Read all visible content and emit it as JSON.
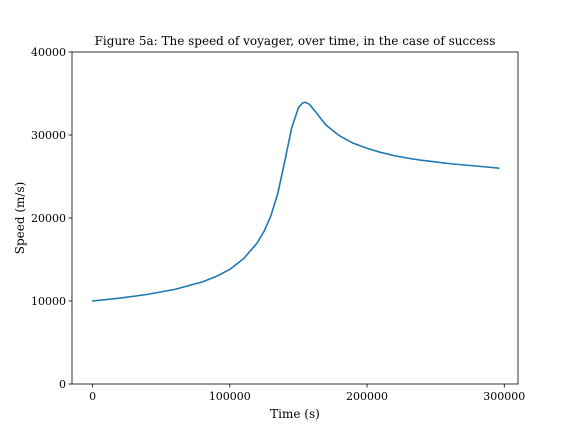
{
  "chart_data": {
    "type": "line",
    "title": "Figure 5a: The speed of voyager, over time, in the case of success",
    "xlabel": "Time (s)",
    "ylabel": "Speed (m/s)",
    "xlim": [
      -15000,
      310000
    ],
    "ylim": [
      0,
      40000
    ],
    "xticks": [
      0,
      100000,
      200000,
      300000
    ],
    "xtick_labels": [
      "0",
      "100000",
      "200000",
      "300000"
    ],
    "yticks": [
      0,
      10000,
      20000,
      30000,
      40000
    ],
    "ytick_labels": [
      "0",
      "10000",
      "20000",
      "30000",
      "40000"
    ],
    "grid": false,
    "series": [
      {
        "color": "#1f77b4",
        "x": [
          0,
          20000,
          40000,
          60000,
          80000,
          90000,
          100000,
          110000,
          120000,
          125000,
          130000,
          135000,
          140000,
          145000,
          150000,
          153000,
          155000,
          158000,
          162000,
          170000,
          180000,
          190000,
          200000,
          210000,
          220000,
          230000,
          240000,
          250000,
          260000,
          270000,
          280000,
          290000,
          296000
        ],
        "y": [
          10000,
          10350,
          10800,
          11400,
          12300,
          12950,
          13800,
          15100,
          17000,
          18400,
          20300,
          23000,
          26800,
          30800,
          33300,
          33850,
          33950,
          33700,
          32900,
          31200,
          29900,
          29000,
          28400,
          27900,
          27500,
          27200,
          26950,
          26750,
          26550,
          26400,
          26250,
          26100,
          26000
        ]
      }
    ]
  }
}
